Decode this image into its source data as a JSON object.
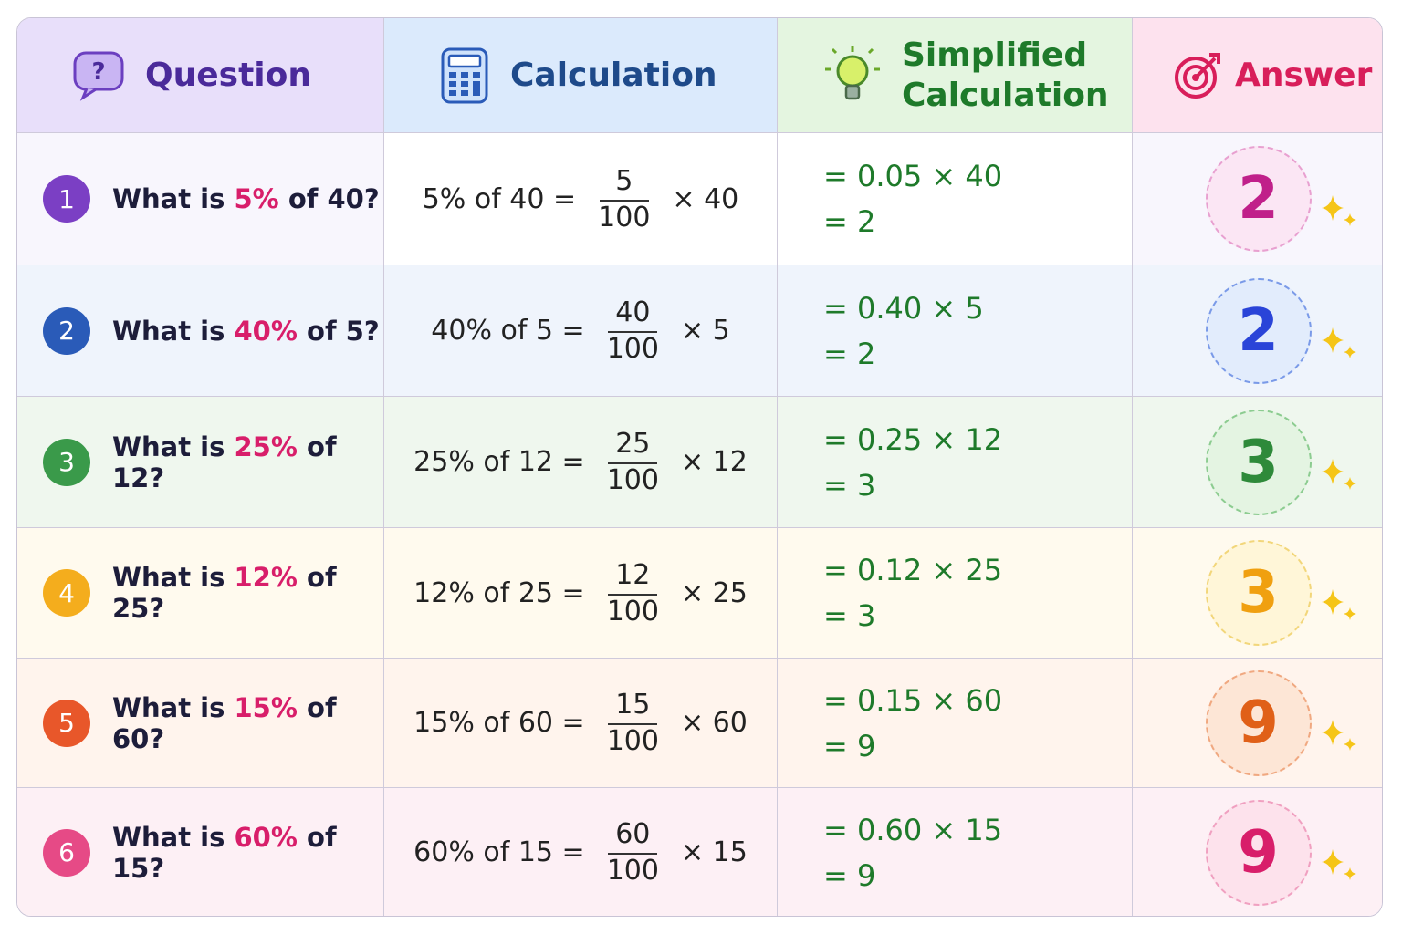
{
  "header": {
    "columns": [
      "Question",
      "Calculation",
      "Simplified Calculation",
      "Answer"
    ]
  },
  "rows": [
    {
      "number": "1",
      "question": {
        "prefix": "What is",
        "percent": "5%",
        "suffix": "of 40?"
      },
      "calculation": {
        "left": "5% of 40 =",
        "numerator": "5",
        "denominator": "100",
        "right": "× 40"
      },
      "simplified": [
        "= 0.05 × 40",
        "= 2"
      ],
      "answer": "2"
    },
    {
      "number": "2",
      "question": {
        "prefix": "What is",
        "percent": "40%",
        "suffix": "of 5?"
      },
      "calculation": {
        "left": "40% of 5 =",
        "numerator": "40",
        "denominator": "100",
        "right": "× 5"
      },
      "simplified": [
        "= 0.40 × 5",
        "= 2"
      ],
      "answer": "2"
    },
    {
      "number": "3",
      "question": {
        "prefix": "What is",
        "percent": "25%",
        "suffix": "of 12?"
      },
      "calculation": {
        "left": "25% of 12 =",
        "numerator": "25",
        "denominator": "100",
        "right": "× 12"
      },
      "simplified": [
        "= 0.25 × 12",
        "= 3"
      ],
      "answer": "3"
    },
    {
      "number": "4",
      "question": {
        "prefix": "What is",
        "percent": "12%",
        "suffix": "of 25?"
      },
      "calculation": {
        "left": "12% of 25 =",
        "numerator": "12",
        "denominator": "100",
        "right": "× 25"
      },
      "simplified": [
        "= 0.12 × 25",
        "= 3"
      ],
      "answer": "3"
    },
    {
      "number": "5",
      "question": {
        "prefix": "What is",
        "percent": "15%",
        "suffix": "of 60?"
      },
      "calculation": {
        "left": "15% of 60 =",
        "numerator": "15",
        "denominator": "100",
        "right": "× 60"
      },
      "simplified": [
        "= 0.15 × 60",
        "= 9"
      ],
      "answer": "9"
    },
    {
      "number": "6",
      "question": {
        "prefix": "What is",
        "percent": "60%",
        "suffix": "of 15?"
      },
      "calculation": {
        "left": "60% of 15 =",
        "numerator": "60",
        "denominator": "100",
        "right": "× 15"
      },
      "simplified": [
        "= 0.60 × 15",
        "= 9"
      ],
      "answer": "9"
    }
  ]
}
